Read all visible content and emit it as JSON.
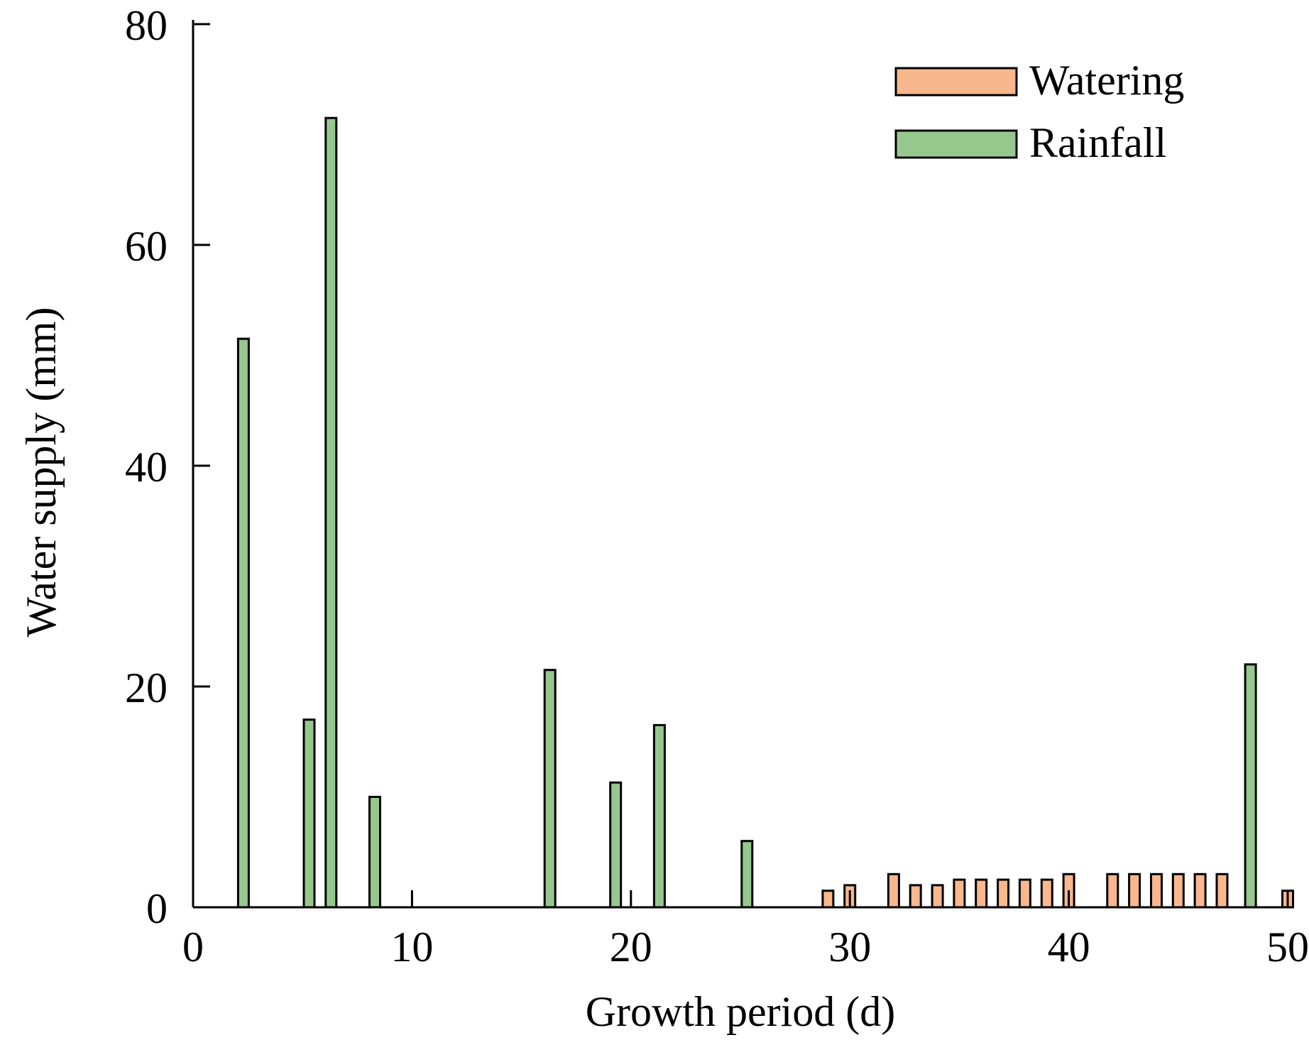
{
  "chart_data": {
    "type": "bar",
    "xlabel": "Growth period (d)",
    "ylabel": "Water supply (mm)",
    "xlim": [
      0,
      50
    ],
    "ylim": [
      0,
      80
    ],
    "x_ticks": [
      0,
      10,
      20,
      30,
      40,
      50
    ],
    "y_ticks": [
      0,
      20,
      40,
      60,
      80
    ],
    "grid": false,
    "legend_position": "top-right",
    "series": [
      {
        "name": "Watering",
        "color": "#F8B78C",
        "points": [
          {
            "x": 29,
            "y": 1.5
          },
          {
            "x": 30,
            "y": 2
          },
          {
            "x": 32,
            "y": 3
          },
          {
            "x": 33,
            "y": 2
          },
          {
            "x": 34,
            "y": 2
          },
          {
            "x": 35,
            "y": 2.5
          },
          {
            "x": 36,
            "y": 2.5
          },
          {
            "x": 37,
            "y": 2.5
          },
          {
            "x": 38,
            "y": 2.5
          },
          {
            "x": 39,
            "y": 2.5
          },
          {
            "x": 40,
            "y": 3
          },
          {
            "x": 42,
            "y": 3
          },
          {
            "x": 43,
            "y": 3
          },
          {
            "x": 44,
            "y": 3
          },
          {
            "x": 45,
            "y": 3
          },
          {
            "x": 46,
            "y": 3
          },
          {
            "x": 47,
            "y": 3
          },
          {
            "x": 50,
            "y": 1.5
          }
        ]
      },
      {
        "name": "Rainfall",
        "color": "#96C88E",
        "points": [
          {
            "x": 2.3,
            "y": 51.5
          },
          {
            "x": 5.3,
            "y": 17
          },
          {
            "x": 6.3,
            "y": 71.5
          },
          {
            "x": 8.3,
            "y": 10
          },
          {
            "x": 16.3,
            "y": 21.5
          },
          {
            "x": 19.3,
            "y": 11.3
          },
          {
            "x": 21.3,
            "y": 16.5
          },
          {
            "x": 25.3,
            "y": 6
          },
          {
            "x": 48.3,
            "y": 22
          }
        ]
      }
    ]
  }
}
